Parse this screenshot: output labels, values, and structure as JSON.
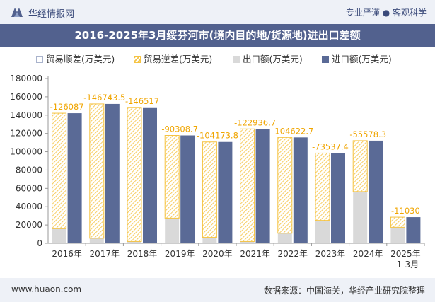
{
  "header": {
    "brand": "华经情报网",
    "slogan": "专业严谨 ● 客观科学"
  },
  "chart_data": {
    "type": "bar",
    "title": "2016-2025年3月绥芬河市(境内目的地/货源地)进出口差额",
    "categories": [
      "2016年",
      "2017年",
      "2018年",
      "2019年",
      "2020年",
      "2021年",
      "2022年",
      "2023年",
      "2024年",
      "2025年"
    ],
    "category_sublabels": [
      "",
      "",
      "",
      "",
      "",
      "",
      "",
      "",
      "",
      "1-3月"
    ],
    "legend": [
      "贸易顺差(万美元)",
      "贸易逆差(万美元)",
      "出口额(万美元)",
      "进口额(万美元)"
    ],
    "series": [
      {
        "name": "出口额(万美元)",
        "values": [
          16000,
          5500,
          2000,
          27500,
          6500,
          2000,
          11000,
          25000,
          56500,
          17500
        ]
      },
      {
        "name": "进口额(万美元)",
        "values": [
          142087,
          152243.5,
          148517,
          117808.7,
          110673.8,
          124936.7,
          115622.7,
          98537.4,
          112078.3,
          28530
        ]
      },
      {
        "name": "贸易逆差(万美元)",
        "values": [
          -126087,
          -146743.5,
          -146517,
          -90308.7,
          -104173.8,
          -122936.7,
          -104622.7,
          -73537.4,
          -55578.3,
          -11030
        ]
      }
    ],
    "data_labels": [
      "-126087",
      "-146743.5",
      "-146517",
      "-90308.7",
      "-104173.8",
      "-122936.7",
      "-104622.7",
      "-73537.4",
      "-55578.3",
      "-11030"
    ],
    "ylim": [
      0,
      180000
    ],
    "yticks": [
      0,
      20000,
      40000,
      60000,
      80000,
      100000,
      120000,
      140000,
      160000,
      180000
    ],
    "ytick_labels": [
      "0",
      "20000",
      "40000",
      "60000",
      "80000",
      "100000",
      "120000",
      "140000",
      "160000",
      "180000"
    ],
    "colors": {
      "export": "#d9d9d9",
      "import": "#5a6a96",
      "deficit": "#f5c342",
      "surplus": "#a9b3cc",
      "label": "#f0a500"
    }
  },
  "footer": {
    "website": "www.huaon.com",
    "source": "数据来源：中国海关，华经产业研究院整理"
  }
}
